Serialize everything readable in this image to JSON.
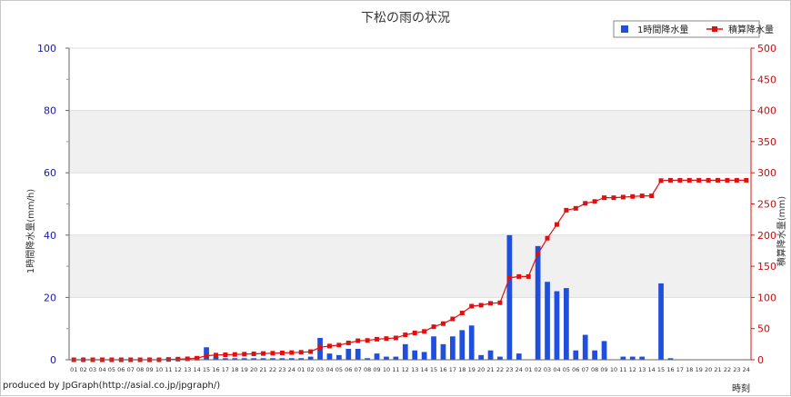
{
  "credit": "produced by JpGraph(http://asial.co.jp/jpgraph/)",
  "colors": {
    "bar": "#1f4fdc",
    "line": "#e01010",
    "left_axis_text": "#1a1aa0",
    "right_axis_text": "#c01010",
    "band": "#f0f0f0"
  },
  "chart_data": {
    "type": "bar",
    "title": "下松の雨の状況",
    "xlabel": "時刻",
    "ylabel": "1時間降水量(mm/h)",
    "ylabel_right": "積算降水量(mm)",
    "ylim": [
      0,
      100
    ],
    "ylim_right": [
      0,
      500
    ],
    "yticks": [
      0,
      20,
      40,
      60,
      80,
      100
    ],
    "yticks_right": [
      0,
      50,
      100,
      150,
      200,
      250,
      300,
      350,
      400,
      450,
      500
    ],
    "grid": true,
    "legend_position": "top-right",
    "categories": [
      "01",
      "02",
      "03",
      "04",
      "05",
      "06",
      "07",
      "08",
      "09",
      "10",
      "11",
      "12",
      "13",
      "14",
      "15",
      "16",
      "17",
      "18",
      "19",
      "20",
      "21",
      "22",
      "23",
      "24",
      "01",
      "02",
      "03",
      "04",
      "05",
      "06",
      "07",
      "08",
      "09",
      "10",
      "11",
      "12",
      "13",
      "14",
      "15",
      "16",
      "17",
      "18",
      "19",
      "20",
      "21",
      "22",
      "23",
      "24",
      "01",
      "02",
      "03",
      "04",
      "05",
      "06",
      "07",
      "08",
      "09",
      "10",
      "11",
      "12",
      "13",
      "14",
      "15",
      "16",
      "17",
      "18",
      "19",
      "20",
      "21",
      "22",
      "23",
      "24"
    ],
    "series": [
      {
        "name": "1時間降水量",
        "kind": "bar",
        "axis": "left",
        "values": [
          0,
          0,
          0,
          0,
          0,
          0,
          0,
          0,
          0,
          0,
          0.5,
          0.5,
          0.5,
          1,
          4,
          1,
          0.5,
          0.5,
          0.5,
          0.5,
          0.5,
          0.5,
          0.5,
          0.5,
          0.5,
          1,
          7,
          2,
          1.5,
          3.5,
          3.5,
          0.5,
          2,
          1,
          1,
          5,
          3,
          2.5,
          7.5,
          5,
          7.5,
          9.5,
          11,
          1.5,
          3,
          1,
          40,
          2,
          0,
          36.5,
          25,
          22,
          23,
          3,
          8,
          3,
          6,
          0,
          1,
          1,
          1,
          0,
          24.5,
          0.5,
          0,
          0,
          0,
          0,
          0,
          0,
          0,
          0
        ]
      },
      {
        "name": "積算降水量",
        "kind": "line",
        "axis": "right",
        "values": [
          0,
          0,
          0,
          0,
          0,
          0,
          0,
          0,
          0,
          0,
          0.5,
          1,
          1.5,
          2.5,
          6.5,
          7.5,
          8,
          8.5,
          9,
          9.5,
          10,
          10.5,
          11,
          11.5,
          12,
          13,
          20,
          22,
          23.5,
          27,
          30.5,
          31,
          33,
          34,
          35,
          40,
          43,
          45.5,
          53,
          58,
          65.5,
          75,
          86,
          87.5,
          90.5,
          91.5,
          131.5,
          133.5,
          133.5,
          170,
          195,
          217,
          240,
          243,
          251,
          254,
          260,
          260,
          261,
          262,
          263,
          263,
          287.5,
          288,
          288,
          288,
          288,
          288,
          288,
          288,
          288,
          288
        ]
      }
    ]
  }
}
